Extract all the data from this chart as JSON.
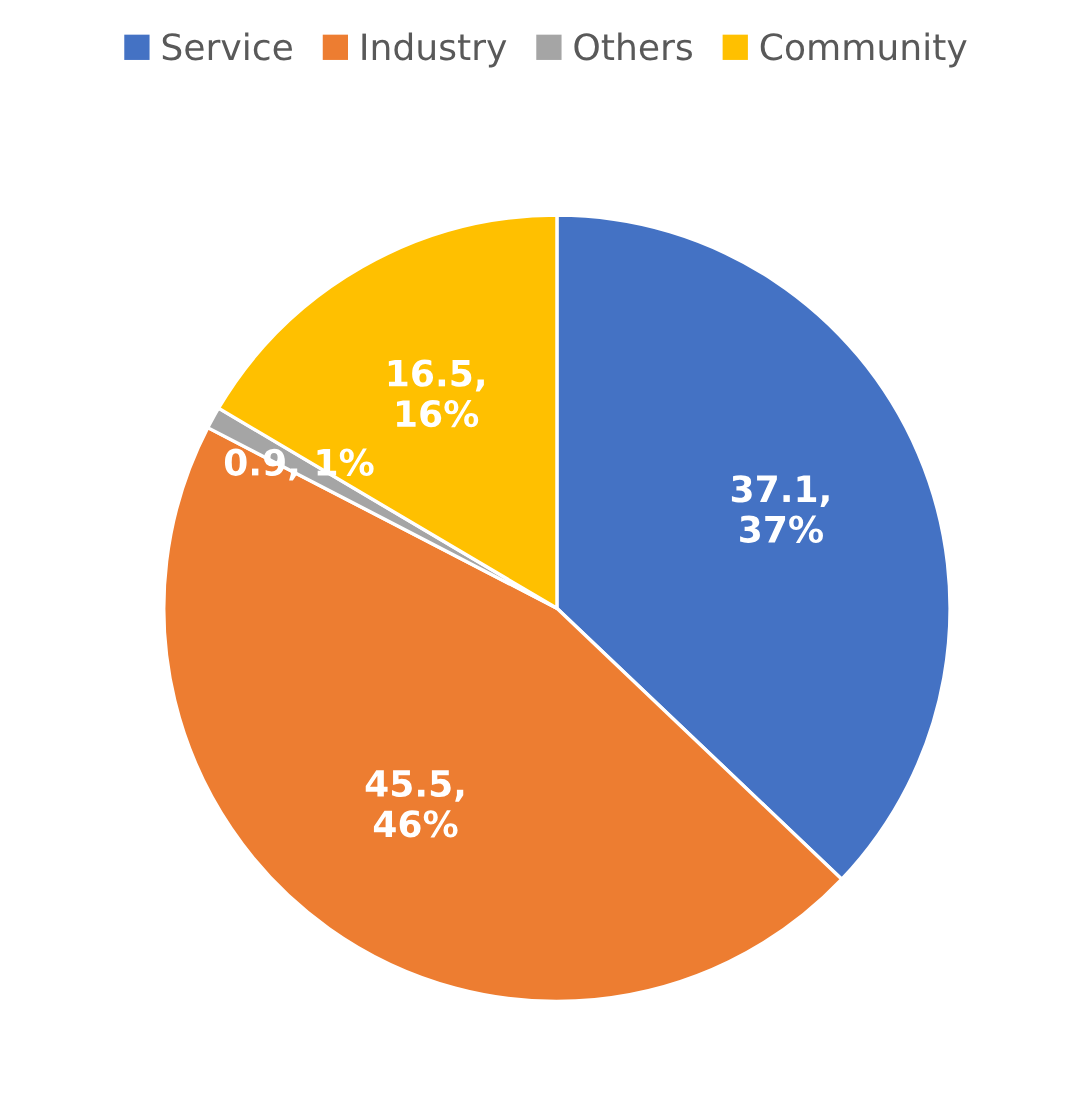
{
  "chart_data": {
    "type": "pie",
    "categories": [
      "Service",
      "Industry",
      "Others",
      "Community"
    ],
    "values": [
      37.1,
      45.5,
      0.9,
      16.5
    ],
    "colors": [
      "#4472c4",
      "#ed7d31",
      "#a5a5a5",
      "#ffc000"
    ],
    "value_labels": [
      "37.1,\n37%",
      "45.5,\n46%",
      "0.9, 1%",
      "16.5,\n16%"
    ],
    "legend": "top"
  }
}
